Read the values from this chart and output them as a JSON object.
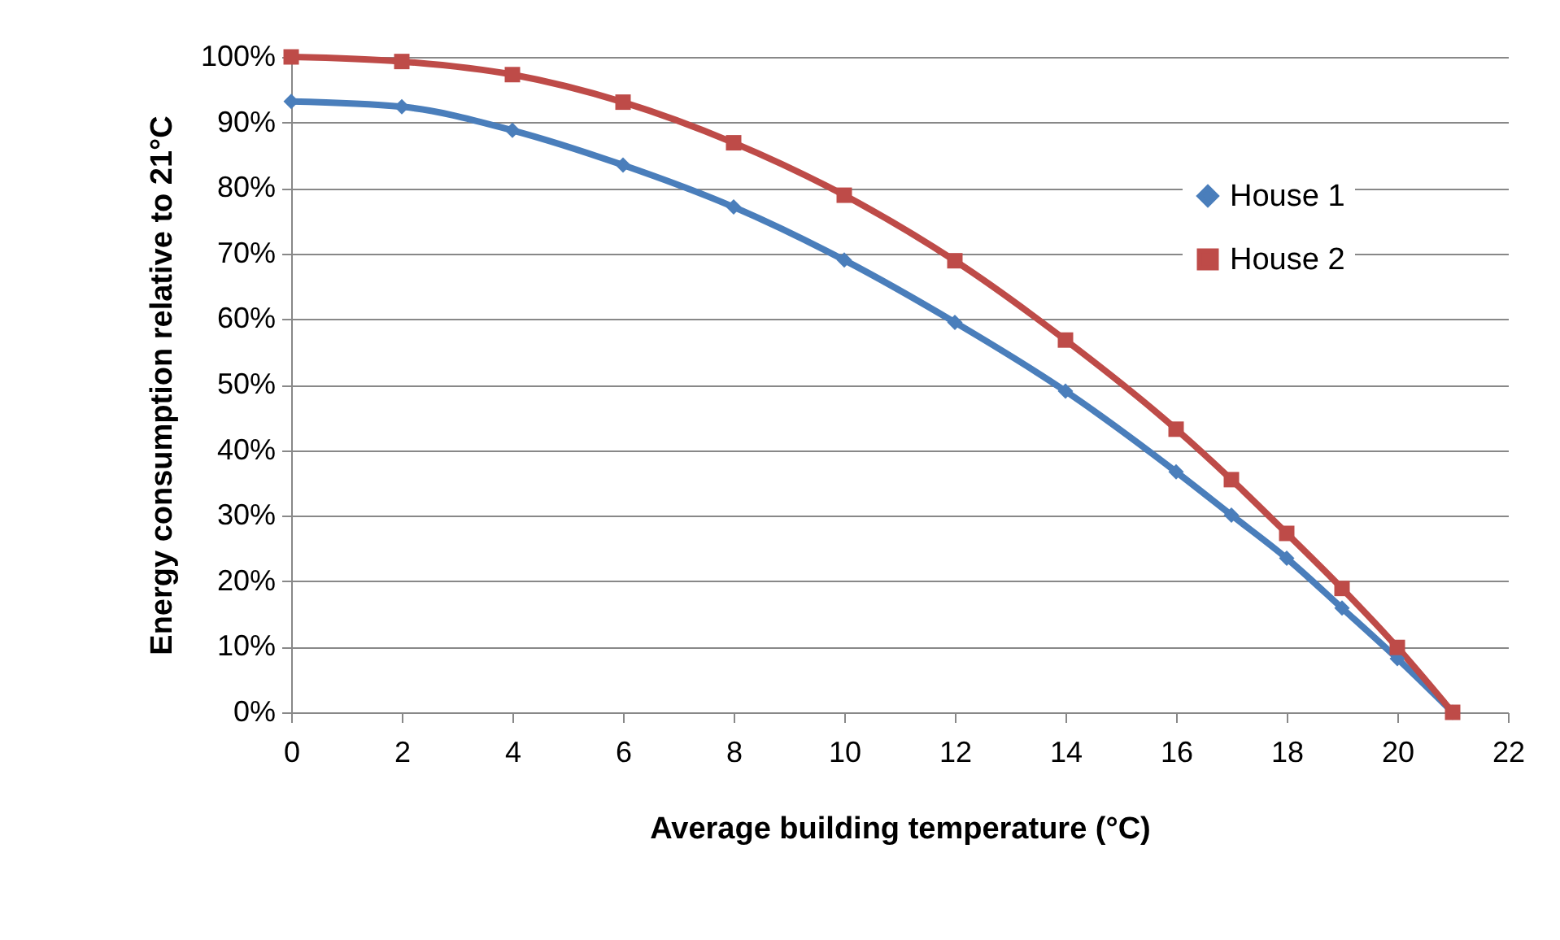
{
  "chart_data": {
    "type": "line",
    "xlabel": "Average building temperature (°C)",
    "ylabel": "Energy consumption relative to 21°C",
    "x": [
      0,
      2,
      4,
      6,
      8,
      10,
      12,
      14,
      16,
      17,
      18,
      19,
      20,
      21
    ],
    "series": [
      {
        "name": "House 1",
        "color": "#4a7ebb",
        "marker": "diamond",
        "values": [
          93.2,
          92.4,
          88.8,
          83.5,
          77.1,
          69,
          59.5,
          49,
          36.7,
          30.1,
          23.5,
          15.9,
          8.2,
          0
        ]
      },
      {
        "name": "House 2",
        "color": "#be4b48",
        "marker": "square",
        "values": [
          100,
          99.3,
          97.3,
          93.1,
          86.9,
          78.9,
          68.9,
          56.8,
          43.2,
          35.5,
          27.3,
          18.9,
          9.9,
          0
        ]
      }
    ],
    "xlim": [
      0,
      22
    ],
    "xticks": [
      0,
      2,
      4,
      6,
      8,
      10,
      12,
      14,
      16,
      18,
      20,
      22
    ],
    "ylim": [
      0,
      100
    ],
    "yticks": [
      {
        "value": 0,
        "label": "0%"
      },
      {
        "value": 10,
        "label": "10%"
      },
      {
        "value": 20,
        "label": "20%"
      },
      {
        "value": 30,
        "label": "30%"
      },
      {
        "value": 40,
        "label": "40%"
      },
      {
        "value": 50,
        "label": "50%"
      },
      {
        "value": 60,
        "label": "60%"
      },
      {
        "value": 70,
        "label": "70%"
      },
      {
        "value": 80,
        "label": "80%"
      },
      {
        "value": 90,
        "label": "90%"
      },
      {
        "value": 100,
        "label": "100%"
      }
    ],
    "grid": "y",
    "legend": "right",
    "line_style": "solid"
  }
}
